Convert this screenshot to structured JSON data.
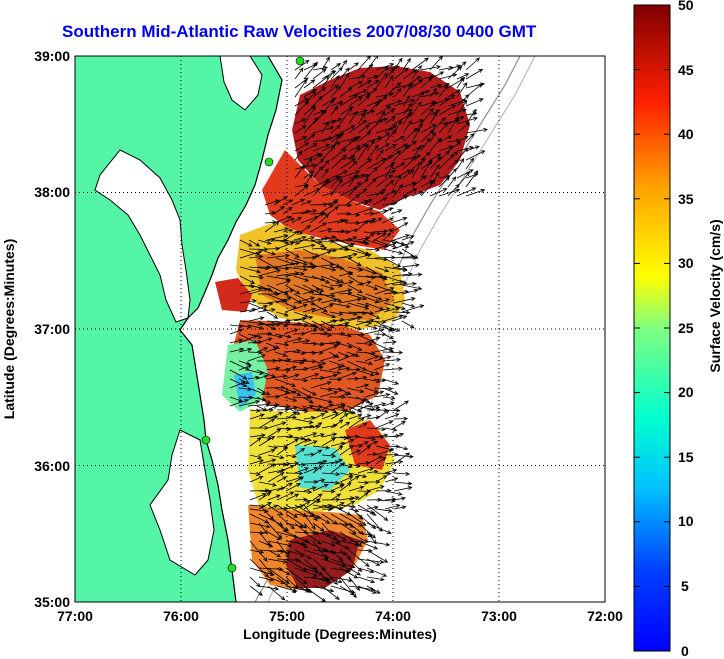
{
  "title": "Southern Mid-Atlantic Raw Velocities 2007/08/30 0400 GMT",
  "map": {
    "xlabel": "Longitude (Degrees:Minutes)",
    "ylabel": "Latitude (Degrees:Minutes)",
    "x_ticks": [
      "77:00",
      "76:00",
      "75:00",
      "74:00",
      "73:00",
      "72:00"
    ],
    "y_ticks": [
      "39:00",
      "38:00",
      "37:00",
      "36:00",
      "35:00"
    ],
    "lon_range": [
      -77,
      -72
    ],
    "lat_range": [
      35,
      39
    ],
    "grid": "dotted"
  },
  "colorbar": {
    "label": "Surface Velocity (cm/s)",
    "ticks": [
      "50",
      "45",
      "40",
      "35",
      "30",
      "25",
      "20",
      "15",
      "10",
      "5",
      "0"
    ],
    "range": [
      0,
      50
    ],
    "colormap": "jet"
  },
  "colors": {
    "title": "#0000ee",
    "land": "#55f5a8",
    "coast": "#000000",
    "bathymetry": "#909090",
    "stations": "#22dd22"
  }
}
